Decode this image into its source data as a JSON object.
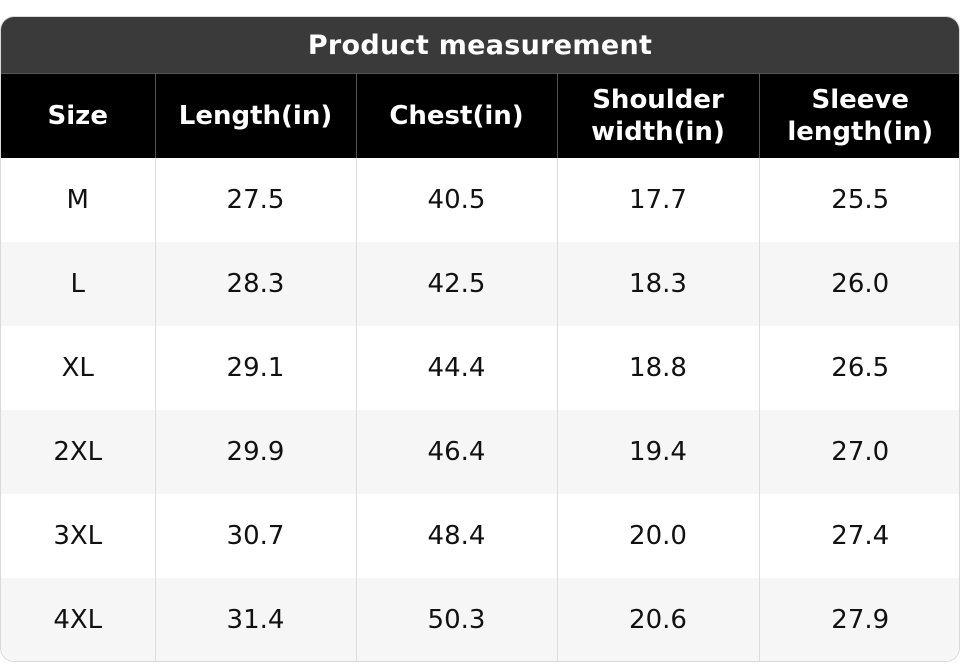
{
  "title": "Product measurement",
  "headers": [
    {
      "line1": "Size",
      "line2": ""
    },
    {
      "line1": "Length(in)",
      "line2": ""
    },
    {
      "line1": "Chest(in)",
      "line2": ""
    },
    {
      "line1": "Shoulder",
      "line2": "width(in)"
    },
    {
      "line1": "Sleeve",
      "line2": "length(in)"
    }
  ],
  "rows": [
    [
      "M",
      "27.5",
      "40.5",
      "17.7",
      "25.5"
    ],
    [
      "L",
      "28.3",
      "42.5",
      "18.3",
      "26.0"
    ],
    [
      "XL",
      "29.1",
      "44.4",
      "18.8",
      "26.5"
    ],
    [
      "2XL",
      "29.9",
      "46.4",
      "19.4",
      "27.0"
    ],
    [
      "3XL",
      "30.7",
      "48.4",
      "20.0",
      "27.4"
    ],
    [
      "4XL",
      "31.4",
      "50.3",
      "20.6",
      "27.9"
    ]
  ],
  "colors": {
    "title_bg": "#3a3a3a",
    "header_bg": "#000000",
    "row_alt_bg": "#f6f6f6"
  }
}
